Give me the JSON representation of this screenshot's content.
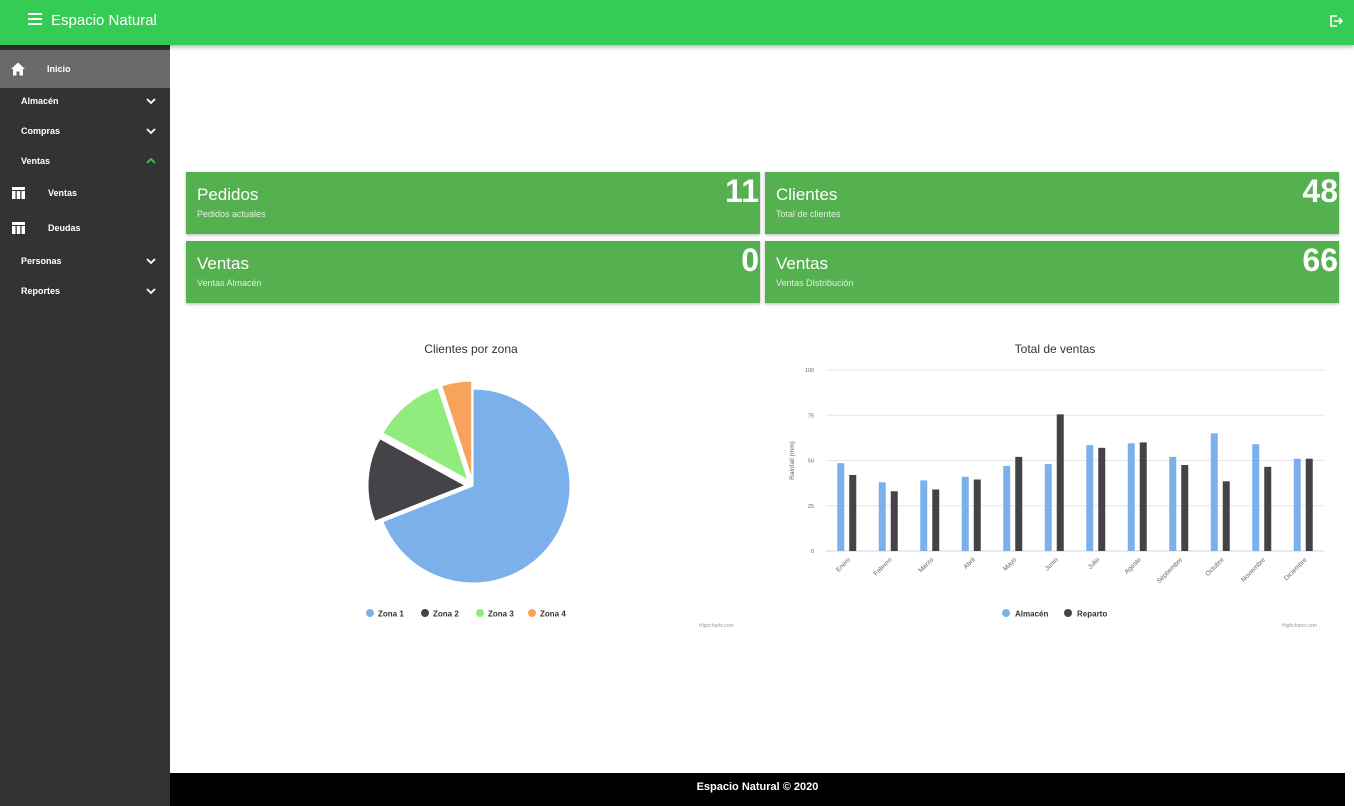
{
  "app": {
    "title": "Espacio Natural"
  },
  "sidebar": {
    "items": [
      {
        "label": "Inicio",
        "icon": "home-icon"
      },
      {
        "label": "Almacén",
        "icon": "chevron-down-icon"
      },
      {
        "label": "Compras",
        "icon": "chevron-down-icon"
      },
      {
        "label": "Ventas",
        "icon": "chevron-up-icon"
      },
      {
        "label": "Ventas",
        "icon": "table-icon"
      },
      {
        "label": "Deudas",
        "icon": "table-icon"
      },
      {
        "label": "Personas",
        "icon": "chevron-down-icon"
      },
      {
        "label": "Reportes",
        "icon": "chevron-down-icon"
      }
    ]
  },
  "cards": [
    {
      "title": "Pedidos",
      "subtitle": "Pedidos actuales",
      "value": "11"
    },
    {
      "title": "Clientes",
      "subtitle": "Total de clientes",
      "value": "48"
    },
    {
      "title": "Ventas",
      "subtitle": "Ventas Almacén",
      "value": "0"
    },
    {
      "title": "Ventas",
      "subtitle": "Ventas DIstribución",
      "value": "66"
    }
  ],
  "colors": {
    "topbar": "#34cc55",
    "card": "#55b04f",
    "sidebar": "#333333",
    "accent": "#34cc55"
  },
  "chart_data": [
    {
      "type": "pie",
      "title": "Clientes por zona",
      "categories": [
        "Zona 1",
        "Zona 2",
        "Zona 3",
        "Zona 4"
      ],
      "values": [
        69,
        14,
        12,
        5
      ],
      "colors": [
        "#7cb0eb",
        "#434348",
        "#90ed7d",
        "#f7a35c"
      ],
      "credits": "Highcharts.com"
    },
    {
      "type": "bar",
      "title": "Total de ventas",
      "ylabel": "Rainfall (mm)",
      "ylim": [
        0,
        100
      ],
      "yticks": [
        "0",
        "25",
        "50",
        "75",
        "100"
      ],
      "categories": [
        "Enero",
        "Febrero",
        "Marzo",
        "Abril",
        "Mayo",
        "Junio",
        "Julio",
        "Agosto",
        "Septiembre",
        "Octubre",
        "Noviembre",
        "Diciembre"
      ],
      "series": [
        {
          "name": "Almacén",
          "color": "#7cb0eb",
          "values": [
            48.5,
            38,
            39,
            41,
            47,
            48,
            58.5,
            59.5,
            52,
            65,
            59,
            51
          ]
        },
        {
          "name": "Reparto",
          "color": "#434348",
          "values": [
            42,
            33,
            34,
            39.5,
            52,
            75.5,
            57,
            60,
            47.5,
            38.5,
            46.5,
            51
          ]
        }
      ],
      "credits": "Highcharts.com"
    }
  ],
  "footer": {
    "text": "Espacio Natural © 2020"
  }
}
